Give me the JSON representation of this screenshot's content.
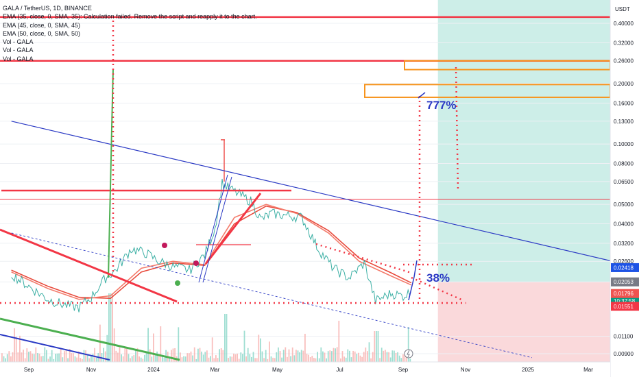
{
  "legend": {
    "title": "GALA / TetherUS, 1D, BINANCE",
    "ema35": "EMA (35, close, 0, SMA, 35): Calculation failed. Remove the script and reapply it to the chart.",
    "ema45": "EMA (45, close, 0, SMA, 45)",
    "ema50": "EMA (50, close, 0, SMA, 50)",
    "vol1": "Vol - GALA",
    "vol2": "Vol - GALA",
    "vol3": "Vol - GALA"
  },
  "axis": {
    "unit": "USDT",
    "y_ticks": [
      "0.40000",
      "0.32000",
      "0.26000",
      "0.20000",
      "0.16000",
      "0.13000",
      "0.10000",
      "0.08000",
      "0.06500",
      "0.05000",
      "0.04000",
      "0.03200",
      "0.02600",
      "0.02053",
      "0.01100",
      "0.00900"
    ],
    "x_ticks": [
      "Sep",
      "Nov",
      "2024",
      "Mar",
      "May",
      "Jul",
      "Sep",
      "Nov",
      "2025",
      "Mar"
    ]
  },
  "price_tags": [
    {
      "text": "0.02418",
      "color": "#1e53e5"
    },
    {
      "text": "0.02053",
      "color": "#787b86"
    },
    {
      "text": "0.01800",
      "sub": "10:37:58",
      "color": "#089981"
    },
    {
      "text": "0.01796",
      "color": "#ef5350"
    },
    {
      "text": "0.01551",
      "color": "#f23645"
    }
  ],
  "annotations": {
    "gain_target": "777%",
    "gain_current": "38%"
  },
  "chart_data": {
    "type": "line",
    "title": "GALA / TetherUS, 1D, BINANCE",
    "ylabel": "USDT",
    "y_scale": "log",
    "ylim": [
      0.0085,
      0.43
    ],
    "x_range": [
      "2023-08-15",
      "2025-03-31"
    ],
    "grid": true,
    "legend_position": "top-left",
    "series": [
      {
        "name": "GALA / TetherUS",
        "points": [
          [
            "2023-08-15",
            0.0225
          ],
          [
            "2023-09-01",
            0.0195
          ],
          [
            "2023-09-20",
            0.0168
          ],
          [
            "2023-10-05",
            0.0158
          ],
          [
            "2023-10-20",
            0.0153
          ],
          [
            "2023-11-01",
            0.0172
          ],
          [
            "2023-11-15",
            0.0215
          ],
          [
            "2023-11-25",
            0.0235
          ],
          [
            "2023-12-10",
            0.03
          ],
          [
            "2023-12-25",
            0.0285
          ],
          [
            "2024-01-05",
            0.0262
          ],
          [
            "2024-01-20",
            0.0245
          ],
          [
            "2024-02-05",
            0.0235
          ],
          [
            "2024-02-20",
            0.028
          ],
          [
            "2024-03-01",
            0.038
          ],
          [
            "2024-03-08",
            0.064
          ],
          [
            "2024-03-15",
            0.06
          ],
          [
            "2024-03-25",
            0.056
          ],
          [
            "2024-04-05",
            0.052
          ],
          [
            "2024-04-15",
            0.042
          ],
          [
            "2024-04-25",
            0.045
          ],
          [
            "2024-05-10",
            0.044
          ],
          [
            "2024-05-25",
            0.043
          ],
          [
            "2024-06-10",
            0.03
          ],
          [
            "2024-06-25",
            0.024
          ],
          [
            "2024-07-10",
            0.0215
          ],
          [
            "2024-07-25",
            0.0255
          ],
          [
            "2024-08-05",
            0.0165
          ],
          [
            "2024-08-20",
            0.018
          ],
          [
            "2024-09-01",
            0.0175
          ],
          [
            "2024-09-09",
            0.0183
          ]
        ]
      },
      {
        "name": "EMA (45, close, 0, SMA, 45)",
        "points": [
          [
            "2023-08-15",
            0.023
          ],
          [
            "2023-09-20",
            0.019
          ],
          [
            "2023-10-20",
            0.0168
          ],
          [
            "2023-11-20",
            0.0175
          ],
          [
            "2023-12-20",
            0.024
          ],
          [
            "2024-01-20",
            0.026
          ],
          [
            "2024-02-20",
            0.025
          ],
          [
            "2024-03-20",
            0.043
          ],
          [
            "2024-04-20",
            0.05
          ],
          [
            "2024-05-20",
            0.045
          ],
          [
            "2024-06-20",
            0.036
          ],
          [
            "2024-07-20",
            0.026
          ],
          [
            "2024-08-20",
            0.022
          ],
          [
            "2024-09-09",
            0.0198
          ]
        ]
      },
      {
        "name": "EMA (50, close, 0, SMA, 50)",
        "points": [
          [
            "2023-08-15",
            0.0235
          ],
          [
            "2023-09-20",
            0.0195
          ],
          [
            "2023-10-20",
            0.0172
          ],
          [
            "2023-11-20",
            0.017
          ],
          [
            "2023-12-20",
            0.023
          ],
          [
            "2024-01-20",
            0.0255
          ],
          [
            "2024-02-20",
            0.0248
          ],
          [
            "2024-03-20",
            0.04
          ],
          [
            "2024-04-20",
            0.049
          ],
          [
            "2024-05-20",
            0.0455
          ],
          [
            "2024-06-20",
            0.037
          ],
          [
            "2024-07-20",
            0.027
          ],
          [
            "2024-08-20",
            0.0228
          ],
          [
            "2024-09-09",
            0.0203
          ]
        ]
      }
    ],
    "levels": [
      0.43,
      0.26,
      0.053,
      0.0155
    ],
    "zones": [
      {
        "from": 0.26,
        "to": 0.235
      },
      {
        "from": 0.198,
        "to": 0.171
      }
    ],
    "trendlines": [
      {
        "from": [
          "2023-08-15",
          0.13
        ],
        "to": [
          "2025-04-01",
          0.0255
        ]
      },
      {
        "from": [
          "2023-08-15",
          0.036
        ],
        "to": [
          "2025-01-05",
          0.0086
        ]
      }
    ],
    "position_tool": {
      "entry": 0.02053,
      "target": 0.43,
      "stop": 0.0085,
      "start": "2024-10-05"
    }
  }
}
